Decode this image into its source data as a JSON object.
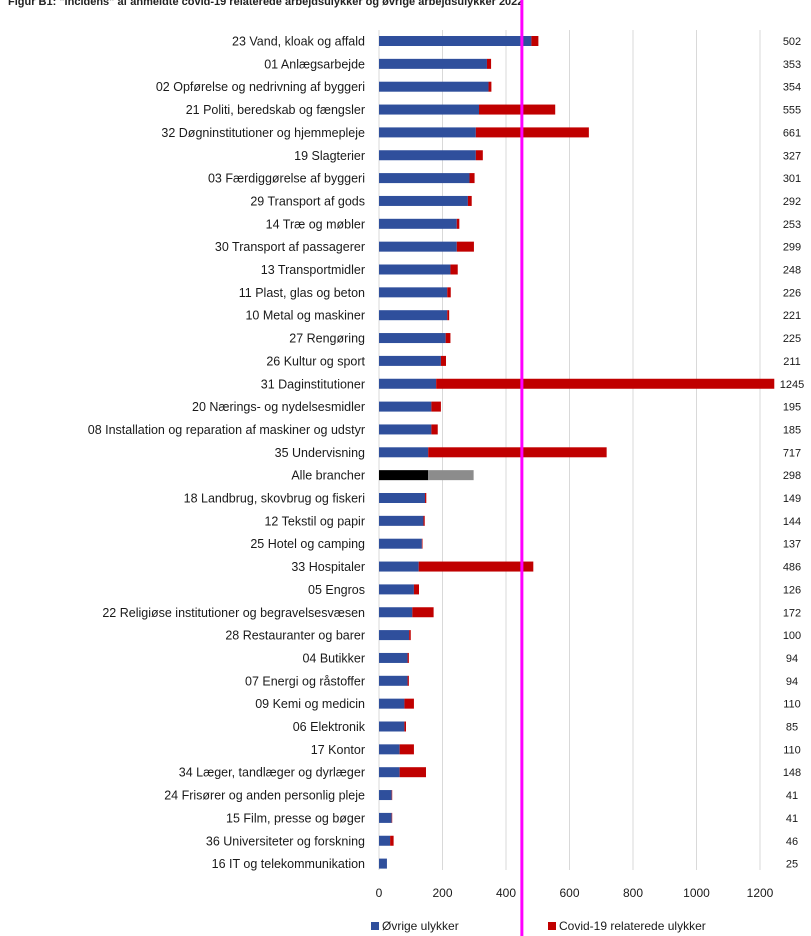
{
  "title": "Figur B1: \"Incidens\" af anmeldte covid-19 relaterede arbejdsulykker og øvrige arbejdsulykker 2022",
  "chart_data": {
    "type": "bar",
    "orientation": "horizontal",
    "stacked": true,
    "xlim": [
      0,
      1300
    ],
    "xticks": [
      0,
      200,
      400,
      600,
      800,
      1000,
      1200
    ],
    "grid": true,
    "legend_position": "bottom",
    "categories": [
      "23 Vand, kloak og affald",
      "01 Anlægsarbejde",
      "02 Opførelse og nedrivning af byggeri",
      "21 Politi, beredskab og fængsler",
      "32 Døgninstitutioner og hjemmepleje",
      "19 Slagterier",
      "03 Færdiggørelse af byggeri",
      "29 Transport af gods",
      "14 Træ og møbler",
      "30 Transport af passagerer",
      "13 Transportmidler",
      "11 Plast, glas og beton",
      "10 Metal og maskiner",
      "27 Rengøring",
      "26 Kultur og sport",
      "31 Daginstitutioner",
      "20 Nærings- og nydelsesmidler",
      "08 Installation og reparation af maskiner og udstyr",
      "35 Undervisning",
      "Alle brancher",
      "18 Landbrug, skovbrug og fiskeri",
      "12 Tekstil og papir",
      "25 Hotel og camping",
      "33 Hospitaler",
      "05 Engros",
      "22 Religiøse institutioner og begravelsesvæsen",
      "28 Restauranter og barer",
      "04 Butikker",
      "07 Energi og råstoffer",
      "09 Kemi og medicin",
      "06 Elektronik",
      "17 Kontor",
      "34 Læger, tandlæger og dyrlæger",
      "24 Frisører og anden personlig pleje",
      "15 Film, presse og bøger",
      "36 Universiteter og forskning",
      "16 IT og telekommunikation"
    ],
    "totals": [
      502,
      353,
      354,
      555,
      661,
      327,
      301,
      292,
      253,
      299,
      248,
      226,
      221,
      225,
      211,
      1245,
      195,
      185,
      717,
      298,
      149,
      144,
      137,
      486,
      126,
      172,
      100,
      94,
      94,
      110,
      85,
      110,
      148,
      41,
      41,
      46,
      25
    ],
    "series": [
      {
        "name": "Øvrige ulykker",
        "color": "#2f4f9c",
        "values": [
          480,
          340,
          345,
          315,
          305,
          305,
          285,
          280,
          245,
          245,
          225,
          215,
          215,
          210,
          195,
          180,
          165,
          165,
          155,
          155,
          145,
          140,
          135,
          125,
          110,
          105,
          95,
          90,
          90,
          80,
          80,
          65,
          65,
          40,
          40,
          35,
          25
        ]
      },
      {
        "name": "Covid-19 relaterede ulykker",
        "color": "#c00000",
        "values": [
          22,
          13,
          9,
          240,
          356,
          22,
          16,
          12,
          8,
          54,
          23,
          11,
          6,
          15,
          16,
          1065,
          30,
          20,
          562,
          143,
          4,
          4,
          2,
          361,
          16,
          67,
          5,
          4,
          4,
          30,
          5,
          45,
          83,
          1,
          1,
          11,
          0
        ]
      }
    ],
    "special_category": {
      "name": "Alle brancher",
      "colors": [
        "#000000",
        "#8c8c8c"
      ]
    },
    "marker_line": {
      "value": 450,
      "color": "#ff00ff"
    }
  }
}
